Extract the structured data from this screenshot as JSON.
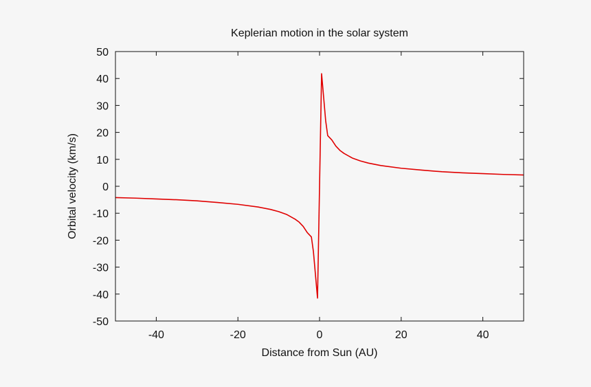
{
  "chart_data": {
    "type": "line",
    "title": "Keplerian motion in the solar system",
    "xlabel": "Distance from Sun (AU)",
    "ylabel": "Orbital velocity (km/s)",
    "xlim": [
      -50,
      50
    ],
    "ylim": [
      -50,
      50
    ],
    "xticks": [
      -40,
      -20,
      0,
      20,
      40
    ],
    "yticks": [
      -50,
      -40,
      -30,
      -20,
      -10,
      0,
      10,
      20,
      30,
      40,
      50
    ],
    "grid": false,
    "legend": "none",
    "series": [
      {
        "color": "#e00000",
        "points": [
          [
            -50,
            -4.2
          ],
          [
            -45,
            -4.4
          ],
          [
            -40,
            -4.7
          ],
          [
            -35,
            -5.0
          ],
          [
            -30,
            -5.4
          ],
          [
            -25,
            -6.0
          ],
          [
            -20,
            -6.7
          ],
          [
            -15,
            -7.7
          ],
          [
            -12,
            -8.6
          ],
          [
            -10,
            -9.4
          ],
          [
            -8,
            -10.5
          ],
          [
            -6,
            -12.2
          ],
          [
            -5,
            -13.3
          ],
          [
            -4,
            -14.9
          ],
          [
            -3,
            -17.2
          ],
          [
            -2,
            -18.8
          ],
          [
            -1.5,
            -24.3
          ],
          [
            -0.5,
            -41.5
          ],
          [
            0.5,
            41.8
          ],
          [
            1.5,
            24.3
          ],
          [
            2,
            18.8
          ],
          [
            3,
            17.2
          ],
          [
            4,
            14.9
          ],
          [
            5,
            13.3
          ],
          [
            6,
            12.2
          ],
          [
            8,
            10.5
          ],
          [
            10,
            9.4
          ],
          [
            12,
            8.6
          ],
          [
            15,
            7.7
          ],
          [
            20,
            6.7
          ],
          [
            25,
            6.0
          ],
          [
            30,
            5.4
          ],
          [
            35,
            5.0
          ],
          [
            40,
            4.7
          ],
          [
            45,
            4.4
          ],
          [
            50,
            4.2
          ]
        ]
      }
    ]
  }
}
